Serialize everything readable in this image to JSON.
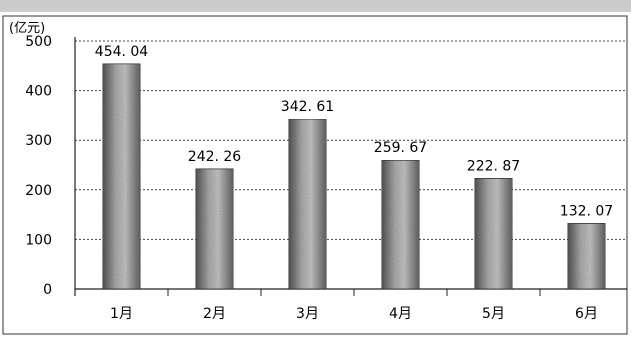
{
  "chart_data": {
    "type": "bar",
    "unit_label": "(亿元)",
    "categories": [
      "1月",
      "2月",
      "3月",
      "4月",
      "5月",
      "6月"
    ],
    "values": [
      454.04,
      242.26,
      342.61,
      259.67,
      222.87,
      132.07
    ],
    "data_labels": [
      "454. 04",
      "242. 26",
      "342. 61",
      "259. 67",
      "222. 87",
      "132. 07"
    ],
    "yticks": [
      "0",
      "100",
      "200",
      "300",
      "400",
      "500"
    ],
    "ylim": [
      0,
      500
    ],
    "grid": true,
    "legend": "none"
  }
}
